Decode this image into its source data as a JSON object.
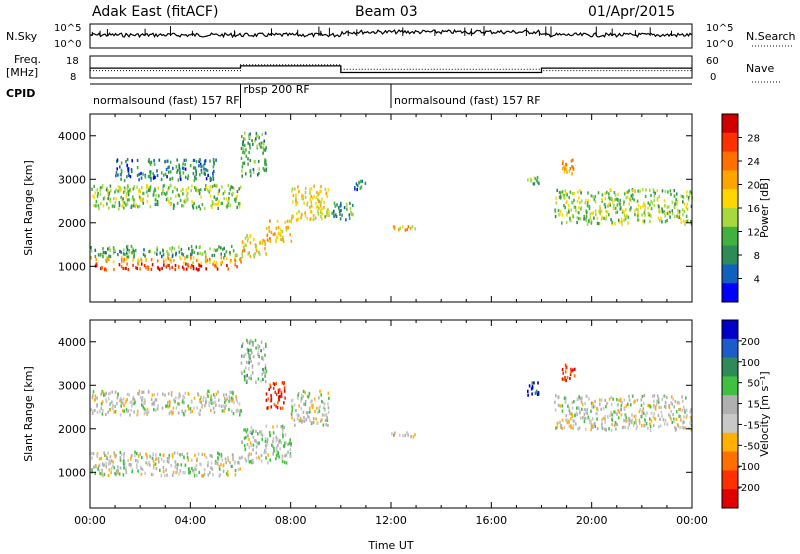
{
  "header": {
    "station": "Adak East (fitACF)",
    "beam": "Beam 03",
    "date": "01/Apr/2015"
  },
  "strip": {
    "nsky_label": "N.Sky",
    "nsearch_label": "N.Search",
    "freq_label_1": "Freq.",
    "freq_label_2": "[MHz]",
    "nave_label": "Nave",
    "cpid_label": "CPID",
    "noise_ticks_left": [
      "10^5",
      "10^0"
    ],
    "noise_ticks_right": [
      "10^5",
      "10^0"
    ],
    "freq_ticks": [
      "18",
      "8"
    ],
    "nave_ticks": [
      "60",
      "0"
    ],
    "freq_segments": [
      {
        "t0": 0,
        "t1": 6.0,
        "value": 12.5
      },
      {
        "t0": 6.0,
        "t1": 10.0,
        "value": 13.5
      },
      {
        "t0": 10.0,
        "t1": 18.0,
        "value": 10.5
      },
      {
        "t0": 18.0,
        "t1": 24.0,
        "value": 12.5
      }
    ],
    "nave_segments": [
      {
        "t0": 0,
        "t1": 6.0,
        "value": 20
      },
      {
        "t0": 6.0,
        "t1": 10.0,
        "value": 36
      },
      {
        "t0": 10.0,
        "t1": 18.0,
        "value": 24
      },
      {
        "t0": 18.0,
        "t1": 24.0,
        "value": 20
      }
    ],
    "cpid_segments": [
      {
        "t0": 0,
        "t1": 6.0,
        "label": "normalsound (fast) 157 RF"
      },
      {
        "t0": 6.0,
        "t1": 12.0,
        "label": "rbsp 200 RF"
      },
      {
        "t0": 12.0,
        "t1": 24.0,
        "label": "normalsound (fast) 157 RF"
      }
    ]
  },
  "chart_data": [
    {
      "type": "heatmap",
      "ylabel": "Slant Range [km]",
      "ylim": [
        180,
        4500
      ],
      "yticks": [
        "1000",
        "2000",
        "3000",
        "4000"
      ],
      "xlim": [
        0,
        24
      ],
      "colorbar": {
        "label": "Power [dB]",
        "ticks": [
          "28",
          "24",
          "20",
          "16",
          "12",
          "8",
          "4"
        ],
        "colors": [
          "#d00000",
          "#ff3000",
          "#ff7000",
          "#ffa500",
          "#ffd700",
          "#a8d840",
          "#40b040",
          "#2e8b57",
          "#1060c0",
          "#0000ff"
        ]
      },
      "regions": [
        {
          "t0": 0.0,
          "t1": 6.0,
          "r0": 950,
          "r1": 1100,
          "level": 0.9
        },
        {
          "t0": 0.0,
          "t1": 6.0,
          "r0": 1100,
          "r1": 1250,
          "level": 0.65
        },
        {
          "t0": 0.0,
          "t1": 6.0,
          "r0": 1250,
          "r1": 1500,
          "level": 0.3
        },
        {
          "t0": 0.0,
          "t1": 6.0,
          "r0": 2350,
          "r1": 2900,
          "level": 0.4
        },
        {
          "t0": 1.0,
          "t1": 5.0,
          "r0": 3000,
          "r1": 3500,
          "level": 0.2
        },
        {
          "t0": 6.0,
          "t1": 7.0,
          "r0": 1250,
          "r1": 1750,
          "level": 0.55
        },
        {
          "t0": 7.0,
          "t1": 8.0,
          "r0": 1600,
          "r1": 2100,
          "level": 0.6
        },
        {
          "t0": 8.0,
          "t1": 9.5,
          "r0": 2100,
          "r1": 2900,
          "level": 0.55
        },
        {
          "t0": 6.0,
          "t1": 7.0,
          "r0": 3100,
          "r1": 4100,
          "level": 0.3
        },
        {
          "t0": 9.5,
          "t1": 10.5,
          "r0": 2100,
          "r1": 2500,
          "level": 0.3
        },
        {
          "t0": 10.5,
          "t1": 11.0,
          "r0": 2800,
          "r1": 3000,
          "level": 0.2
        },
        {
          "t0": 12.0,
          "t1": 13.0,
          "r0": 1850,
          "r1": 1950,
          "level": 0.6
        },
        {
          "t0": 17.4,
          "t1": 17.9,
          "r0": 2900,
          "r1": 3100,
          "level": 0.3
        },
        {
          "t0": 18.8,
          "t1": 19.3,
          "r0": 3100,
          "r1": 3500,
          "level": 0.65
        },
        {
          "t0": 18.5,
          "t1": 24.0,
          "r0": 2000,
          "r1": 2800,
          "level": 0.4
        }
      ]
    },
    {
      "type": "heatmap",
      "ylabel": "Slant Range [km]",
      "ylim": [
        180,
        4500
      ],
      "yticks": [
        "1000",
        "2000",
        "3000",
        "4000"
      ],
      "xlim": [
        0,
        24
      ],
      "xticks": [
        "00:00",
        "04:00",
        "08:00",
        "12:00",
        "16:00",
        "20:00",
        "00:00"
      ],
      "xlabel": "Time UT",
      "colorbar": {
        "label": "Velocity [m s⁻¹]",
        "ticks": [
          "200",
          "100",
          "50",
          "15",
          "-15",
          "-50",
          "-100",
          "-200"
        ],
        "colors": [
          "#0000c8",
          "#1c5cc8",
          "#2e8b57",
          "#40c040",
          "#b0b0b0",
          "#c8c8c8",
          "#ffb000",
          "#ff7000",
          "#ff3000",
          "#e00000"
        ]
      },
      "regions": [
        {
          "t0": 0.0,
          "t1": 6.0,
          "r0": 950,
          "r1": 1500,
          "level": 0.5
        },
        {
          "t0": 0.0,
          "t1": 6.0,
          "r0": 2350,
          "r1": 2900,
          "level": 0.5
        },
        {
          "t0": 6.0,
          "t1": 8.0,
          "r0": 1250,
          "r1": 2100,
          "level": 0.55
        },
        {
          "t0": 8.0,
          "t1": 9.5,
          "r0": 2100,
          "r1": 2900,
          "level": 0.5
        },
        {
          "t0": 7.0,
          "t1": 7.8,
          "r0": 2500,
          "r1": 3100,
          "level": 0.05
        },
        {
          "t0": 6.0,
          "t1": 7.0,
          "r0": 3100,
          "r1": 4100,
          "level": 0.6
        },
        {
          "t0": 12.0,
          "t1": 13.0,
          "r0": 1850,
          "r1": 1950,
          "level": 0.4
        },
        {
          "t0": 17.4,
          "t1": 17.9,
          "r0": 2800,
          "r1": 3100,
          "level": 0.9
        },
        {
          "t0": 18.8,
          "t1": 19.3,
          "r0": 3100,
          "r1": 3500,
          "level": 0.1
        },
        {
          "t0": 18.5,
          "t1": 24.0,
          "r0": 2000,
          "r1": 2800,
          "level": 0.5
        }
      ]
    }
  ]
}
